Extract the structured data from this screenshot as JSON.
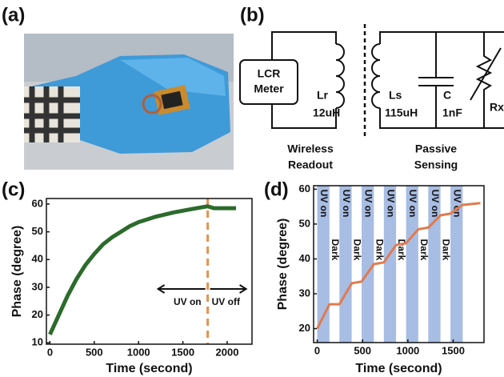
{
  "panel_labels": [
    "(a)",
    "(b)",
    "(c)",
    "(d)"
  ],
  "circuit": {
    "meter": [
      "LCR",
      "Meter"
    ],
    "reader_coil": [
      "Lr",
      "12uH"
    ],
    "sensor_coil": [
      "Ls",
      "115uH"
    ],
    "capacitor": [
      "C",
      "1nF"
    ],
    "resistor": "Rx",
    "captions": [
      [
        "Wireless",
        "Readout"
      ],
      [
        "Passive",
        "Sensing"
      ]
    ]
  },
  "chart_data": [
    {
      "type": "line",
      "x_label": "Time (second)",
      "y_label": "Phase (degree)",
      "xlim": [
        -40,
        2280
      ],
      "ylim": [
        9.5,
        62
      ],
      "xticks": [
        0,
        500,
        1000,
        1500,
        2000
      ],
      "yticks": [
        10,
        20,
        30,
        40,
        50,
        60
      ],
      "series": [
        {
          "color": "#2b6b2b",
          "x": [
            0,
            100,
            200,
            300,
            400,
            500,
            600,
            700,
            800,
            900,
            1000,
            1200,
            1400,
            1600,
            1780,
            1850,
            2100
          ],
          "values": [
            13,
            20,
            27,
            33,
            38,
            42,
            45.5,
            48,
            50,
            52,
            53.5,
            55.5,
            57,
            58.2,
            59.2,
            58.5,
            58.5
          ]
        }
      ],
      "marker_line": {
        "x": 1780,
        "color": "#e8904f"
      },
      "annotations": [
        "UV on",
        "UV off"
      ]
    },
    {
      "type": "line",
      "x_label": "Time (second)",
      "y_label": "Phase (degree)",
      "xlim": [
        -40,
        1840
      ],
      "ylim": [
        16,
        61
      ],
      "xticks": [
        0,
        500,
        1000,
        1500
      ],
      "yticks": [
        20,
        30,
        40,
        50,
        60
      ],
      "bands": {
        "label": "UV on",
        "gap_label": "Dark",
        "color": "#a8bde3",
        "intervals": [
          [
            0,
            135
          ],
          [
            245,
            380
          ],
          [
            490,
            625
          ],
          [
            735,
            870
          ],
          [
            980,
            1115
          ],
          [
            1225,
            1360
          ],
          [
            1470,
            1605
          ]
        ]
      },
      "series": [
        {
          "color": "#e07b4f",
          "x": [
            0,
            135,
            245,
            380,
            490,
            625,
            735,
            870,
            980,
            1115,
            1225,
            1360,
            1470,
            1605,
            1800
          ],
          "values": [
            20,
            27,
            27,
            33,
            33.5,
            38.5,
            39,
            44,
            44.5,
            48.5,
            49,
            52.5,
            53,
            55.5,
            56
          ]
        }
      ]
    }
  ]
}
